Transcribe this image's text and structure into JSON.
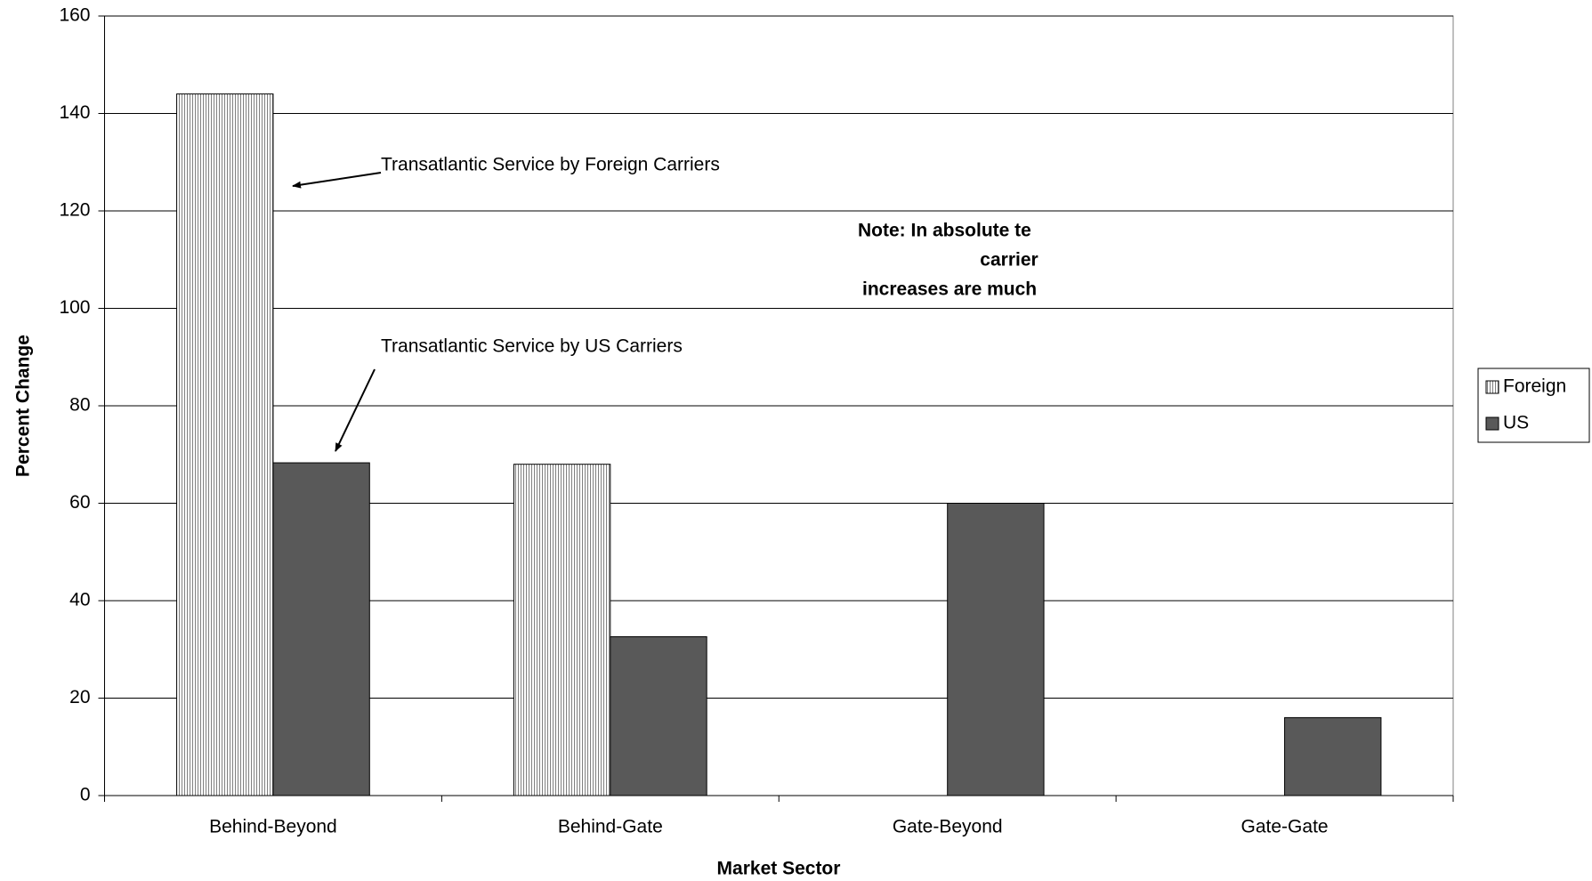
{
  "chart_data": {
    "type": "bar",
    "x_label": "Market Sector",
    "y_label": "Percent Change",
    "categories": [
      "Behind-Beyond",
      "Behind-Gate",
      "Gate-Beyond",
      "Gate-Gate"
    ],
    "series": [
      {
        "name": "Foreign",
        "color": "#808080",
        "pattern": "vertical-stripes",
        "values": [
          144,
          68,
          null,
          null
        ]
      },
      {
        "name": "US",
        "color": "#595959",
        "values": [
          68.3,
          32.6,
          60,
          16
        ]
      }
    ],
    "ylim": [
      0,
      160
    ],
    "yticks": [
      0,
      20,
      40,
      60,
      80,
      100,
      120,
      140,
      160
    ],
    "grid": true,
    "legend": "right",
    "annotations": [
      "Transatlantic Service by Foreign Carriers",
      "Transatlantic Service by US Carriers",
      "Note:  In absolute te",
      "carrier",
      "increases are much"
    ]
  }
}
